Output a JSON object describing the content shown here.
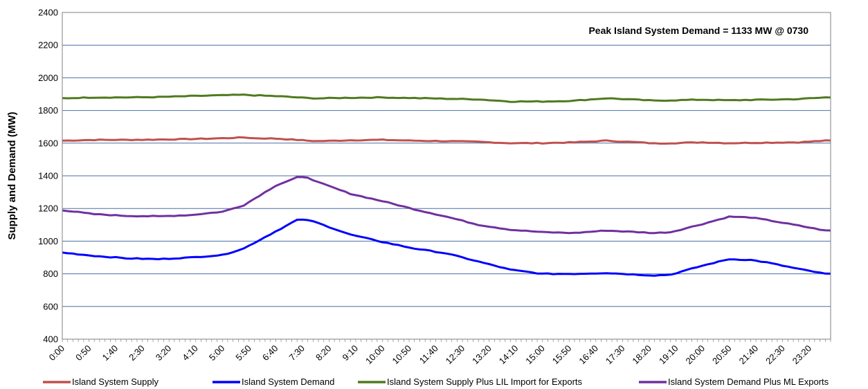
{
  "chart_data": {
    "type": "line",
    "title": "",
    "xlabel": "",
    "ylabel": "Supply and Demand (MW)",
    "ylim": [
      400,
      2400
    ],
    "yticks": [
      400,
      600,
      800,
      1000,
      1200,
      1400,
      1600,
      1800,
      2000,
      2200,
      2400
    ],
    "grid": true,
    "legend_position": "bottom",
    "annotation": "Peak Island System Demand = 1133 MW @ 0730",
    "x_start": "0:00",
    "x_interval_minutes": 10,
    "x_label_every_minutes": 50,
    "x_labels": [
      "0:00",
      "0:50",
      "1:40",
      "2:30",
      "3:20",
      "4:10",
      "5:00",
      "5:50",
      "6:40",
      "7:30",
      "8:20",
      "9:10",
      "10:00",
      "10:50",
      "11:40",
      "12:30",
      "13:20",
      "14:10",
      "15:00",
      "15:50",
      "16:40",
      "17:30",
      "18:20",
      "19:10",
      "20:00",
      "20:50",
      "21:40",
      "22:30",
      "23:20"
    ],
    "key_times": [
      "0:00",
      "1:00",
      "2:00",
      "3:00",
      "4:00",
      "5:00",
      "5:40",
      "6:00",
      "6:40",
      "7:20",
      "7:40",
      "8:00",
      "9:00",
      "10:00",
      "11:00",
      "12:00",
      "13:00",
      "14:00",
      "15:00",
      "16:00",
      "17:00",
      "18:00",
      "18:30",
      "19:00",
      "20:00",
      "20:50",
      "21:30",
      "22:00",
      "23:00",
      "23:50"
    ],
    "series": [
      {
        "name": "Island System Supply",
        "color": "#c0504d",
        "values": [
          1615,
          1620,
          1620,
          1622,
          1625,
          1630,
          1635,
          1630,
          1628,
          1620,
          1615,
          1612,
          1618,
          1620,
          1615,
          1612,
          1608,
          1600,
          1600,
          1605,
          1615,
          1605,
          1598,
          1600,
          1605,
          1600,
          1602,
          1603,
          1605,
          1615
        ]
      },
      {
        "name": "Island System Demand",
        "color": "#0000ff",
        "values": [
          930,
          910,
          895,
          890,
          900,
          915,
          955,
          990,
          1060,
          1130,
          1130,
          1110,
          1040,
          995,
          955,
          925,
          875,
          825,
          800,
          800,
          805,
          795,
          790,
          795,
          850,
          890,
          885,
          870,
          830,
          800
        ]
      },
      {
        "name": "Island System Supply Plus LIL Import for Exports",
        "color": "#4f7a1f",
        "values": [
          1875,
          1880,
          1880,
          1882,
          1888,
          1893,
          1896,
          1893,
          1888,
          1880,
          1876,
          1874,
          1878,
          1880,
          1876,
          1872,
          1868,
          1855,
          1855,
          1860,
          1875,
          1865,
          1860,
          1862,
          1866,
          1862,
          1865,
          1866,
          1870,
          1880
        ]
      },
      {
        "name": "Island System Demand Plus ML Exports",
        "color": "#7030a0",
        "values": [
          1190,
          1165,
          1155,
          1152,
          1160,
          1180,
          1220,
          1260,
          1340,
          1390,
          1390,
          1360,
          1290,
          1245,
          1195,
          1150,
          1100,
          1070,
          1055,
          1050,
          1065,
          1055,
          1050,
          1055,
          1105,
          1150,
          1145,
          1130,
          1095,
          1065
        ]
      }
    ]
  }
}
